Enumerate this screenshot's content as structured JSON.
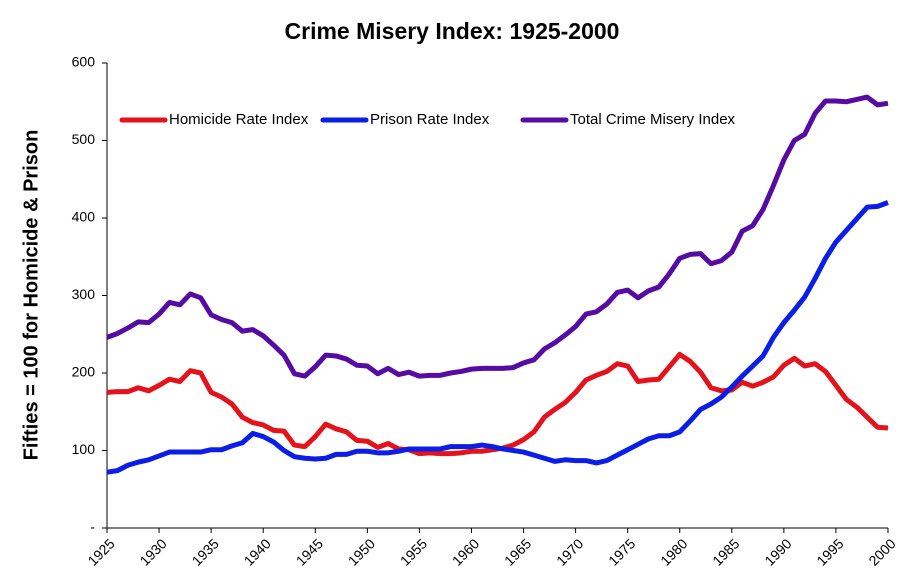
{
  "chart_data": {
    "type": "line",
    "title": "Crime Misery Index: 1925-2000",
    "ylabel": "Fifties = 100 for Homicide & Prison",
    "x": [
      1925,
      1926,
      1927,
      1928,
      1929,
      1930,
      1931,
      1932,
      1933,
      1934,
      1935,
      1936,
      1937,
      1938,
      1939,
      1940,
      1941,
      1942,
      1943,
      1944,
      1945,
      1946,
      1947,
      1948,
      1949,
      1950,
      1951,
      1952,
      1953,
      1954,
      1955,
      1956,
      1957,
      1958,
      1959,
      1960,
      1961,
      1962,
      1963,
      1964,
      1965,
      1966,
      1967,
      1968,
      1969,
      1970,
      1971,
      1972,
      1973,
      1974,
      1975,
      1976,
      1977,
      1978,
      1979,
      1980,
      1981,
      1982,
      1983,
      1984,
      1985,
      1986,
      1987,
      1988,
      1989,
      1990,
      1991,
      1992,
      1993,
      1994,
      1995,
      1996,
      1997,
      1998,
      1999,
      2000
    ],
    "series": [
      {
        "name": "Homicide Rate Index",
        "color": "#e3121b",
        "values": [
          175,
          176,
          176,
          181,
          177,
          184,
          192,
          189,
          203,
          200,
          175,
          169,
          160,
          143,
          136,
          133,
          126,
          125,
          107,
          105,
          118,
          134,
          128,
          124,
          113,
          112,
          104,
          109,
          102,
          101,
          96,
          97,
          96,
          96,
          97,
          99,
          99,
          101,
          103,
          107,
          114,
          124,
          143,
          153,
          162,
          175,
          191,
          197,
          202,
          212,
          209,
          189,
          191,
          192,
          208,
          224,
          215,
          201,
          181,
          177,
          178,
          188,
          183,
          188,
          195,
          210,
          219,
          209,
          212,
          202,
          184,
          166,
          156,
          143,
          130,
          129
        ]
      },
      {
        "name": "Prison Rate Index",
        "color": "#0a1ee8",
        "values": [
          72,
          74,
          81,
          85,
          88,
          93,
          98,
          98,
          98,
          98,
          101,
          101,
          106,
          110,
          122,
          118,
          111,
          100,
          92,
          90,
          89,
          90,
          95,
          95,
          99,
          99,
          97,
          97,
          99,
          102,
          102,
          102,
          102,
          105,
          105,
          105,
          107,
          105,
          102,
          100,
          98,
          94,
          90,
          86,
          88,
          87,
          87,
          84,
          87,
          94,
          101,
          108,
          115,
          119,
          119,
          124,
          138,
          153,
          160,
          169,
          182,
          196,
          209,
          222,
          246,
          265,
          281,
          298,
          322,
          348,
          369,
          384,
          399,
          414,
          415,
          420
        ]
      },
      {
        "name": "Total Crime Misery Index",
        "color": "#560ba3",
        "values": [
          246,
          251,
          258,
          266,
          265,
          276,
          291,
          288,
          302,
          297,
          275,
          269,
          265,
          254,
          256,
          248,
          236,
          223,
          199,
          196,
          208,
          223,
          222,
          218,
          210,
          209,
          199,
          206,
          198,
          201,
          196,
          197,
          197,
          200,
          202,
          205,
          206,
          206,
          206,
          207,
          213,
          217,
          231,
          239,
          249,
          260,
          276,
          279,
          289,
          304,
          307,
          297,
          306,
          311,
          328,
          348,
          353,
          354,
          341,
          345,
          356,
          383,
          390,
          411,
          442,
          475,
          500,
          508,
          535,
          551,
          551,
          550,
          553,
          556,
          546,
          548
        ]
      }
    ],
    "xlim": [
      1925,
      2000
    ],
    "xticks": [
      1925,
      1930,
      1935,
      1940,
      1945,
      1950,
      1955,
      1960,
      1965,
      1970,
      1975,
      1980,
      1985,
      1990,
      1995,
      2000
    ],
    "ylim": [
      0,
      600
    ],
    "yticks": [
      {
        "value": 0,
        "label": "-"
      },
      100,
      200,
      300,
      400,
      500,
      600
    ],
    "legend": "top-left",
    "grid": false
  }
}
